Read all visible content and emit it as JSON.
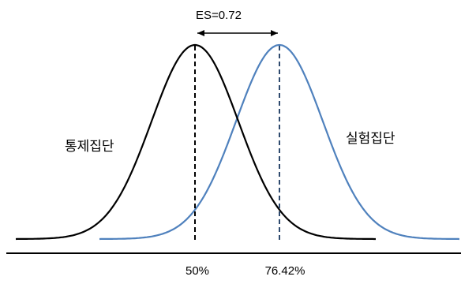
{
  "effect_size_label": "ES=0.72",
  "control_group_label": "통제집단",
  "experimental_group_label": "실험집단",
  "control_percentile_label": "50%",
  "experimental_percentile_label": "76.42%",
  "colors": {
    "control_curve": "#000000",
    "experimental_curve": "#4f81bd",
    "axis": "#000000"
  }
}
